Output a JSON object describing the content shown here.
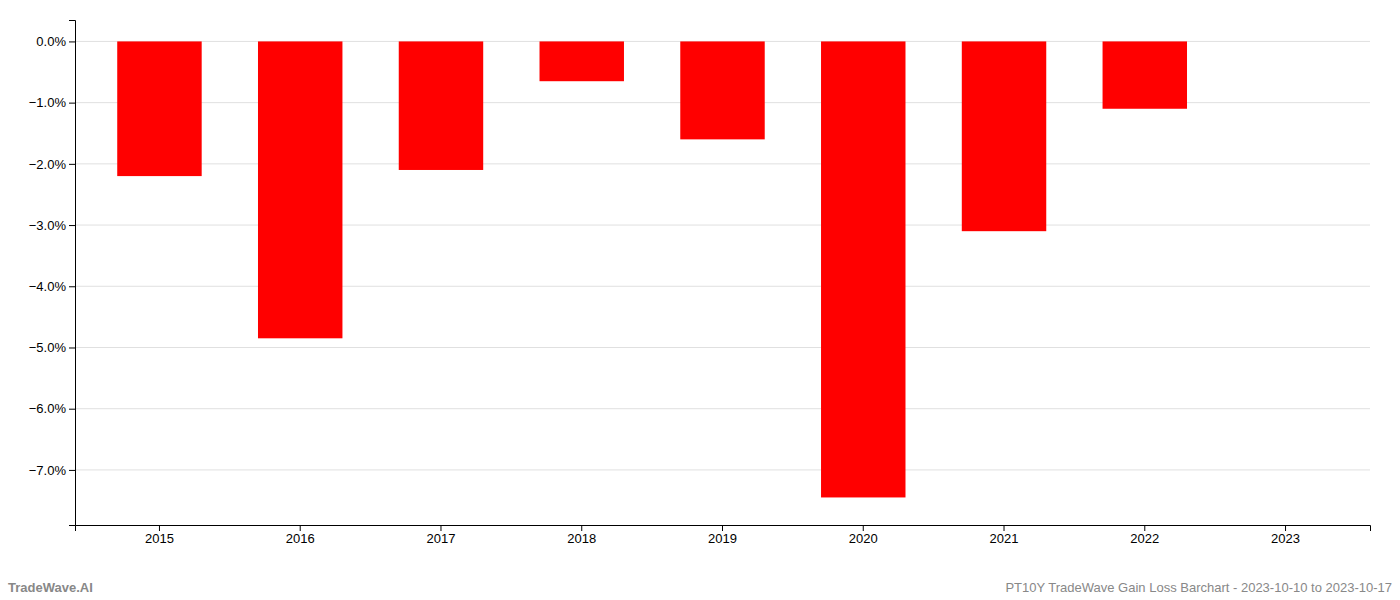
{
  "chart_data": {
    "type": "bar",
    "categories": [
      "2015",
      "2016",
      "2017",
      "2018",
      "2019",
      "2020",
      "2021",
      "2022",
      "2023"
    ],
    "values": [
      -2.2,
      -4.85,
      -2.1,
      -0.65,
      -1.6,
      -7.45,
      -3.1,
      -1.1,
      null
    ],
    "color": "#ff0000",
    "ylim": [
      -7.9,
      0.35
    ],
    "yticks": [
      {
        "value": 0.0,
        "label": "0.0%"
      },
      {
        "value": -1.0,
        "label": "−1.0%"
      },
      {
        "value": -2.0,
        "label": "−2.0%"
      },
      {
        "value": -3.0,
        "label": "−3.0%"
      },
      {
        "value": -4.0,
        "label": "−4.0%"
      },
      {
        "value": -5.0,
        "label": "−5.0%"
      },
      {
        "value": -6.0,
        "label": "−6.0%"
      },
      {
        "value": -7.0,
        "label": "−7.0%"
      }
    ],
    "grid": true,
    "annotations": [
      "TradeWave.AI",
      "PT10Y TradeWave Gain Loss Barchart - 2023-10-10 to 2023-10-17"
    ]
  }
}
